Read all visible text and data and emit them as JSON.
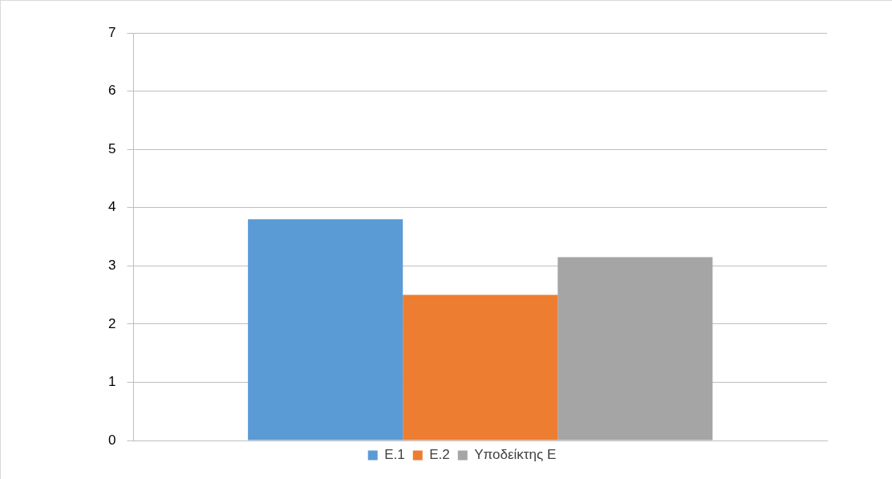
{
  "chart_data": {
    "type": "bar",
    "categories": [
      null
    ],
    "series": [
      {
        "name": "E.1",
        "color": "#5b9bd5",
        "values": [
          3.8
        ]
      },
      {
        "name": "E.2",
        "color": "#ed7d31",
        "values": [
          2.5
        ]
      },
      {
        "name": "Υποδείκτης Ε",
        "color": "#a5a5a5",
        "values": [
          3.15
        ]
      }
    ],
    "ylim": [
      0,
      7
    ],
    "yticks": [
      0,
      1,
      2,
      3,
      4,
      5,
      6,
      7
    ],
    "grid": "y",
    "legend": "bottom"
  }
}
